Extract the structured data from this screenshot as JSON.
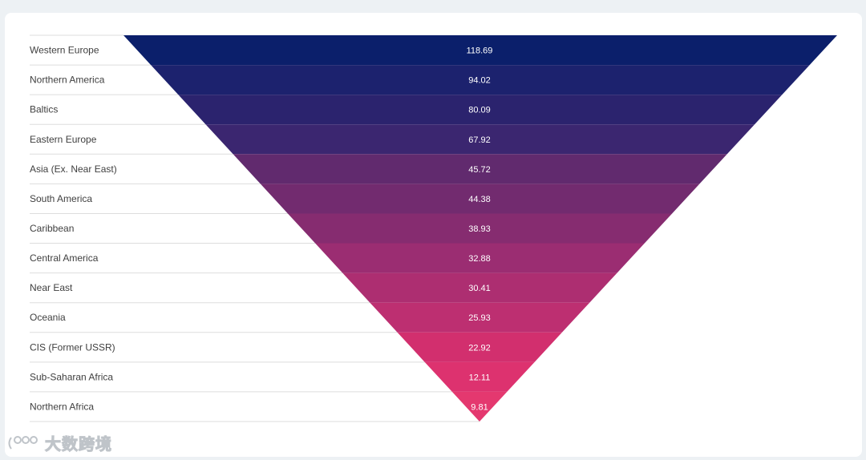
{
  "chart_data": {
    "type": "funnel",
    "orientation": "inverted-triangle",
    "categories": [
      "Western Europe",
      "Northern America",
      "Baltics",
      "Eastern Europe",
      "Asia (Ex. Near East)",
      "South America",
      "Caribbean",
      "Central America",
      "Near East",
      "Oceania",
      "CIS (Former USSR)",
      "Sub-Saharan Africa",
      "Northern Africa"
    ],
    "values": [
      118.69,
      94.02,
      80.09,
      67.92,
      45.72,
      44.38,
      38.93,
      32.88,
      30.41,
      25.93,
      22.92,
      12.11,
      9.81
    ],
    "colors": [
      "#0b1f6b",
      "#1c226e",
      "#2b236e",
      "#3b2670",
      "#612a6e",
      "#722b6f",
      "#862c70",
      "#9b2d72",
      "#ad2e71",
      "#bd2f71",
      "#d22f6e",
      "#dd326f",
      "#e4386f"
    ],
    "legend": "labels-left",
    "grid": false
  },
  "watermark": {
    "text": "大数跨境"
  }
}
